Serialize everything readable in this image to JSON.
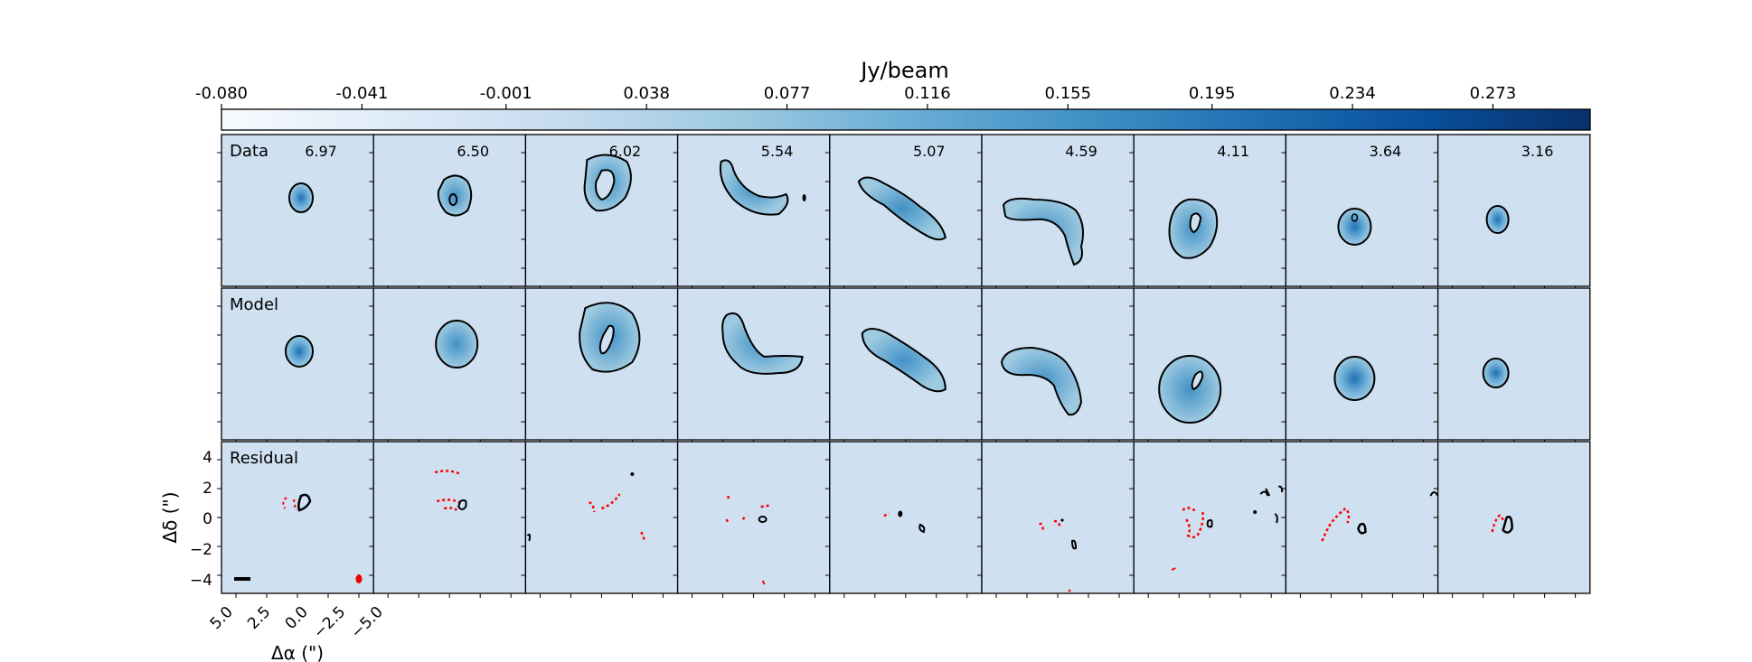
{
  "chart_data": {
    "type": "heatmap",
    "title": "",
    "colorbar": {
      "label": "Jy/beam",
      "tick_labels": [
        "-0.080",
        "-0.041",
        "-0.001",
        "0.038",
        "0.077",
        "0.116",
        "0.155",
        "0.195",
        "0.234",
        "0.273"
      ],
      "range": [
        -0.08,
        0.3
      ],
      "colormap": "Blues",
      "position": "top"
    },
    "rows": [
      "Data",
      "Model",
      "Residual"
    ],
    "channel_labels": [
      "6.97",
      "6.50",
      "6.02",
      "5.54",
      "5.07",
      "4.59",
      "4.11",
      "3.64",
      "3.16"
    ],
    "xlabel": "Δα (\")",
    "ylabel": "Δδ (\")",
    "xticks": [
      "5.0",
      "2.5",
      "0.0",
      "−2.5",
      "−5.0"
    ],
    "yticks": [
      "4",
      "2",
      "0",
      "−2",
      "−4"
    ],
    "xlim": [
      5,
      -5
    ],
    "ylim": [
      -5,
      5
    ],
    "contour_colors": {
      "positive": "#000000",
      "negative": "#ff0000"
    },
    "background_color": "#cfe0f0"
  }
}
